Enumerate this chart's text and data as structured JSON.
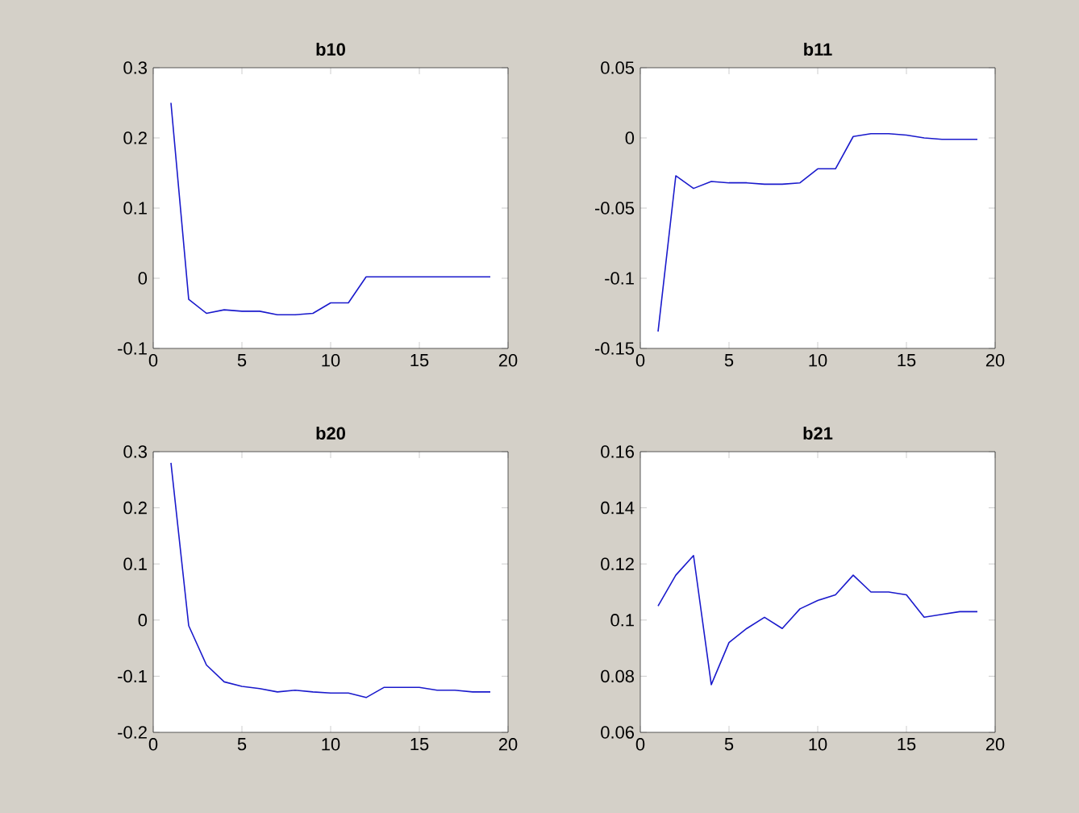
{
  "chart_data": [
    {
      "type": "line",
      "title": "b10",
      "color": "#1a1acc",
      "xlim": [
        0,
        20
      ],
      "ylim": [
        -0.1,
        0.3
      ],
      "xticks": [
        0,
        5,
        10,
        15,
        20
      ],
      "yticks": [
        -0.1,
        0,
        0.1,
        0.2,
        0.3
      ],
      "x": [
        1,
        2,
        3,
        4,
        5,
        6,
        7,
        8,
        9,
        10,
        11,
        12,
        13,
        14,
        15,
        16,
        17,
        18,
        19
      ],
      "values": [
        0.25,
        -0.03,
        -0.05,
        -0.045,
        -0.047,
        -0.047,
        -0.052,
        -0.052,
        -0.05,
        -0.035,
        -0.035,
        0.002,
        0.002,
        0.002,
        0.002,
        0.002,
        0.002,
        0.002,
        0.002
      ]
    },
    {
      "type": "line",
      "title": "b11",
      "color": "#1a1acc",
      "xlim": [
        0,
        20
      ],
      "ylim": [
        -0.15,
        0.05
      ],
      "xticks": [
        0,
        5,
        10,
        15,
        20
      ],
      "yticks": [
        -0.15,
        -0.1,
        -0.05,
        0,
        0.05
      ],
      "x": [
        1,
        2,
        3,
        4,
        5,
        6,
        7,
        8,
        9,
        10,
        11,
        12,
        13,
        14,
        15,
        16,
        17,
        18,
        19
      ],
      "values": [
        -0.138,
        -0.027,
        -0.036,
        -0.031,
        -0.032,
        -0.032,
        -0.033,
        -0.033,
        -0.032,
        -0.022,
        -0.022,
        0.001,
        0.003,
        0.003,
        0.002,
        0.0,
        -0.001,
        -0.001,
        -0.001
      ]
    },
    {
      "type": "line",
      "title": "b20",
      "color": "#1a1acc",
      "xlim": [
        0,
        20
      ],
      "ylim": [
        -0.2,
        0.3
      ],
      "xticks": [
        0,
        5,
        10,
        15,
        20
      ],
      "yticks": [
        -0.2,
        -0.1,
        0,
        0.1,
        0.2,
        0.3
      ],
      "x": [
        1,
        2,
        3,
        4,
        5,
        6,
        7,
        8,
        9,
        10,
        11,
        12,
        13,
        14,
        15,
        16,
        17,
        18,
        19
      ],
      "values": [
        0.28,
        -0.01,
        -0.08,
        -0.11,
        -0.118,
        -0.122,
        -0.128,
        -0.125,
        -0.128,
        -0.13,
        -0.13,
        -0.138,
        -0.12,
        -0.12,
        -0.12,
        -0.125,
        -0.125,
        -0.128,
        -0.128
      ]
    },
    {
      "type": "line",
      "title": "b21",
      "color": "#1a1acc",
      "xlim": [
        0,
        20
      ],
      "ylim": [
        0.06,
        0.16
      ],
      "xticks": [
        0,
        5,
        10,
        15,
        20
      ],
      "yticks": [
        0.06,
        0.08,
        0.1,
        0.12,
        0.14,
        0.16
      ],
      "x": [
        1,
        2,
        3,
        4,
        5,
        6,
        7,
        8,
        9,
        10,
        11,
        12,
        13,
        14,
        15,
        16,
        17,
        18,
        19
      ],
      "values": [
        0.105,
        0.116,
        0.123,
        0.077,
        0.092,
        0.097,
        0.101,
        0.097,
        0.104,
        0.107,
        0.109,
        0.116,
        0.11,
        0.11,
        0.109,
        0.101,
        0.102,
        0.103,
        0.103
      ]
    }
  ]
}
